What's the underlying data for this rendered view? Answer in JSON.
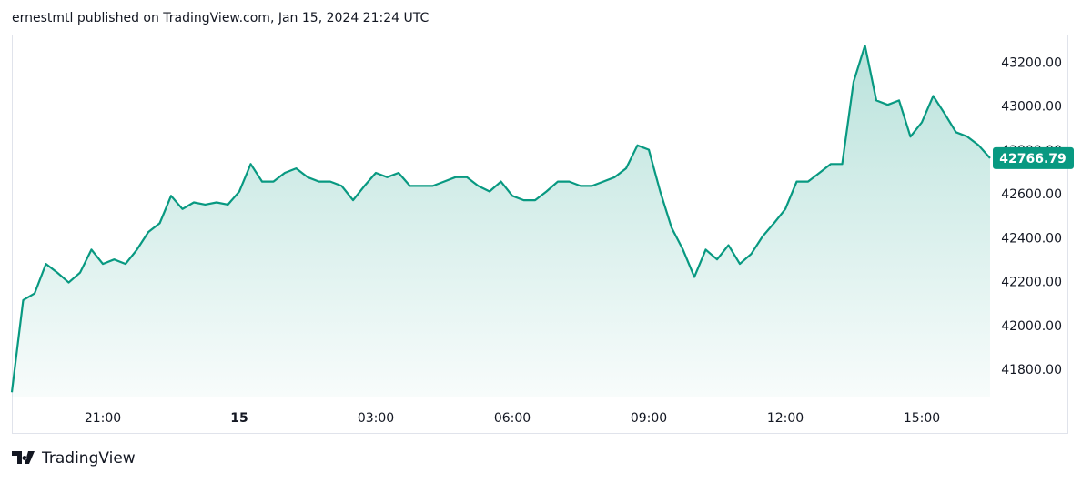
{
  "header": {
    "text": "ernestmtl published on TradingView.com, Jan 15, 2024 21:24 UTC"
  },
  "chart_data": {
    "type": "area",
    "x": [
      "19:00",
      "19:15",
      "19:30",
      "19:45",
      "20:00",
      "20:15",
      "20:30",
      "20:45",
      "21:00",
      "21:15",
      "21:30",
      "21:45",
      "22:00",
      "22:15",
      "22:30",
      "22:45",
      "23:00",
      "23:15",
      "23:30",
      "23:45",
      "00:00",
      "00:15",
      "00:30",
      "00:45",
      "01:00",
      "01:15",
      "01:30",
      "01:45",
      "02:00",
      "02:15",
      "02:30",
      "02:45",
      "03:00",
      "03:15",
      "03:30",
      "03:45",
      "04:00",
      "04:15",
      "04:30",
      "04:45",
      "05:00",
      "05:15",
      "05:30",
      "05:45",
      "06:00",
      "06:15",
      "06:30",
      "06:45",
      "07:00",
      "07:15",
      "07:30",
      "07:45",
      "08:00",
      "08:15",
      "08:30",
      "08:45",
      "09:00",
      "09:15",
      "09:30",
      "09:45",
      "10:00",
      "10:15",
      "10:30",
      "10:45",
      "11:00",
      "11:15",
      "11:30",
      "11:45",
      "12:00",
      "12:15",
      "12:30",
      "12:45",
      "13:00",
      "13:15",
      "13:30",
      "13:45",
      "14:00",
      "14:15",
      "14:30",
      "14:45",
      "15:00",
      "15:15",
      "15:30",
      "15:45",
      "16:00",
      "16:15",
      "16:30"
    ],
    "series": [
      {
        "color": "#089981",
        "values": [
          41700,
          42120,
          42150,
          42285,
          42245,
          42200,
          42245,
          42350,
          42285,
          42305,
          42285,
          42350,
          42430,
          42470,
          42595,
          42535,
          42565,
          42555,
          42565,
          42555,
          42615,
          42740,
          42660,
          42660,
          42700,
          42720,
          42680,
          42660,
          42660,
          42640,
          42575,
          42640,
          42700,
          42680,
          42700,
          42640,
          42640,
          42640,
          42660,
          42680,
          42680,
          42640,
          42615,
          42660,
          42595,
          42575,
          42575,
          42615,
          42660,
          42660,
          42640,
          42640,
          42660,
          42680,
          42720,
          42825,
          42805,
          42615,
          42450,
          42350,
          42225,
          42350,
          42305,
          42370,
          42285,
          42330,
          42410,
          42470,
          42535,
          42660,
          42660,
          42700,
          42740,
          42740,
          43115,
          43280,
          43030,
          43010,
          43030,
          42865,
          42930,
          43050,
          42970,
          42885,
          42865,
          42825,
          42766.79
        ]
      }
    ],
    "ylim": [
      41680,
      43330
    ],
    "yticks": [
      {
        "value": 41800,
        "label": "41800.00"
      },
      {
        "value": 42000,
        "label": "42000.00"
      },
      {
        "value": 42200,
        "label": "42200.00"
      },
      {
        "value": 42400,
        "label": "42400.00"
      },
      {
        "value": 42600,
        "label": "42600.00"
      },
      {
        "value": 42800,
        "label": "42800.00"
      },
      {
        "value": 43000,
        "label": "43000.00"
      },
      {
        "value": 43200,
        "label": "43200.00"
      }
    ],
    "xticks": [
      {
        "value": "21:00",
        "label": "21:00"
      },
      {
        "value": "00:00",
        "label": "15"
      },
      {
        "value": "03:00",
        "label": "03:00"
      },
      {
        "value": "06:00",
        "label": "06:00"
      },
      {
        "value": "09:00",
        "label": "09:00"
      },
      {
        "value": "12:00",
        "label": "12:00"
      },
      {
        "value": "15:00",
        "label": "15:00"
      }
    ]
  },
  "footer": {
    "brand": "TradingView"
  }
}
